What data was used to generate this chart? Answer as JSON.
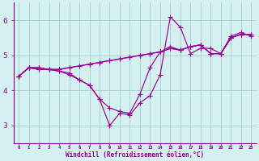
{
  "xlabel": "Windchill (Refroidissement éolien,°C)",
  "x": [
    0,
    1,
    2,
    3,
    4,
    5,
    6,
    7,
    8,
    9,
    10,
    11,
    12,
    13,
    14,
    15,
    16,
    17,
    18,
    19,
    20,
    21,
    22,
    23
  ],
  "line1": [
    4.4,
    4.65,
    4.65,
    4.6,
    4.6,
    4.65,
    4.7,
    4.75,
    4.8,
    4.85,
    4.9,
    4.95,
    5.0,
    5.05,
    5.1,
    5.2,
    5.15,
    5.25,
    5.3,
    5.05,
    5.05,
    5.5,
    5.6,
    5.6
  ],
  "line2": [
    4.4,
    4.65,
    4.65,
    4.6,
    4.6,
    4.65,
    4.7,
    4.75,
    4.8,
    4.85,
    4.9,
    4.95,
    5.0,
    5.05,
    5.1,
    5.2,
    5.15,
    5.25,
    5.3,
    5.05,
    5.05,
    5.5,
    5.6,
    5.6
  ],
  "line3": [
    4.4,
    4.65,
    4.6,
    4.6,
    4.55,
    4.5,
    4.3,
    4.15,
    3.75,
    3.5,
    3.4,
    3.35,
    3.9,
    4.65,
    5.1,
    5.25,
    5.15,
    5.25,
    5.3,
    5.05,
    5.05,
    5.5,
    5.6,
    5.6
  ],
  "line4": [
    4.4,
    4.65,
    4.6,
    4.6,
    4.55,
    4.45,
    4.3,
    4.15,
    3.75,
    3.0,
    3.35,
    3.3,
    3.65,
    3.85,
    4.45,
    6.1,
    5.8,
    5.05,
    5.2,
    5.2,
    5.05,
    5.55,
    5.65,
    5.55
  ],
  "line_color": "#990099",
  "bg_color": "#d4f0f0",
  "grid_color": "#aacccc",
  "axis_color": "#880088",
  "tick_color": "#880088",
  "ylim": [
    2.5,
    6.5
  ],
  "yticks": [
    3,
    4,
    5,
    6
  ],
  "xlim": [
    -0.5,
    23.5
  ]
}
